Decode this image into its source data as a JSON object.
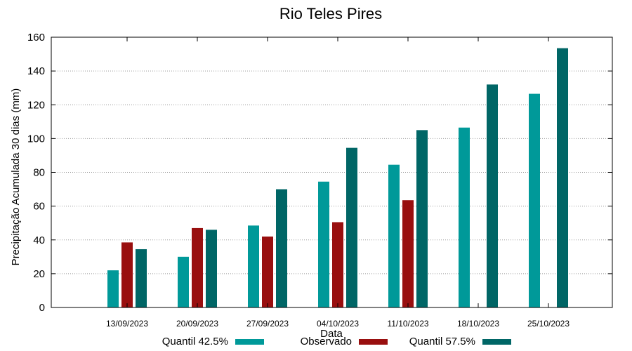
{
  "chart_data": {
    "type": "bar",
    "title": "Rio Teles Pires",
    "xlabel": "Data",
    "ylabel": "Precipitação Acumulada 30 dias (mm)",
    "ylim": [
      0,
      160
    ],
    "yticks": [
      0,
      20,
      40,
      60,
      80,
      100,
      120,
      140,
      160
    ],
    "grid": true,
    "legend_position": "bottom",
    "categories": [
      "13/09/2023",
      "20/09/2023",
      "27/09/2023",
      "04/10/2023",
      "11/10/2023",
      "18/10/2023",
      "25/10/2023"
    ],
    "series": [
      {
        "name": "Quantil 42.5%",
        "color": "#009999",
        "values": [
          22,
          30,
          48.5,
          74.5,
          84.5,
          106.5,
          126.5
        ]
      },
      {
        "name": "Observado",
        "color": "#990f0f",
        "values": [
          38.5,
          47,
          42,
          50.5,
          63.5,
          null,
          null
        ]
      },
      {
        "name": "Quantil 57.5%",
        "color": "#006666",
        "values": [
          34.5,
          46,
          70,
          94.5,
          105,
          132,
          153.5
        ]
      }
    ]
  }
}
